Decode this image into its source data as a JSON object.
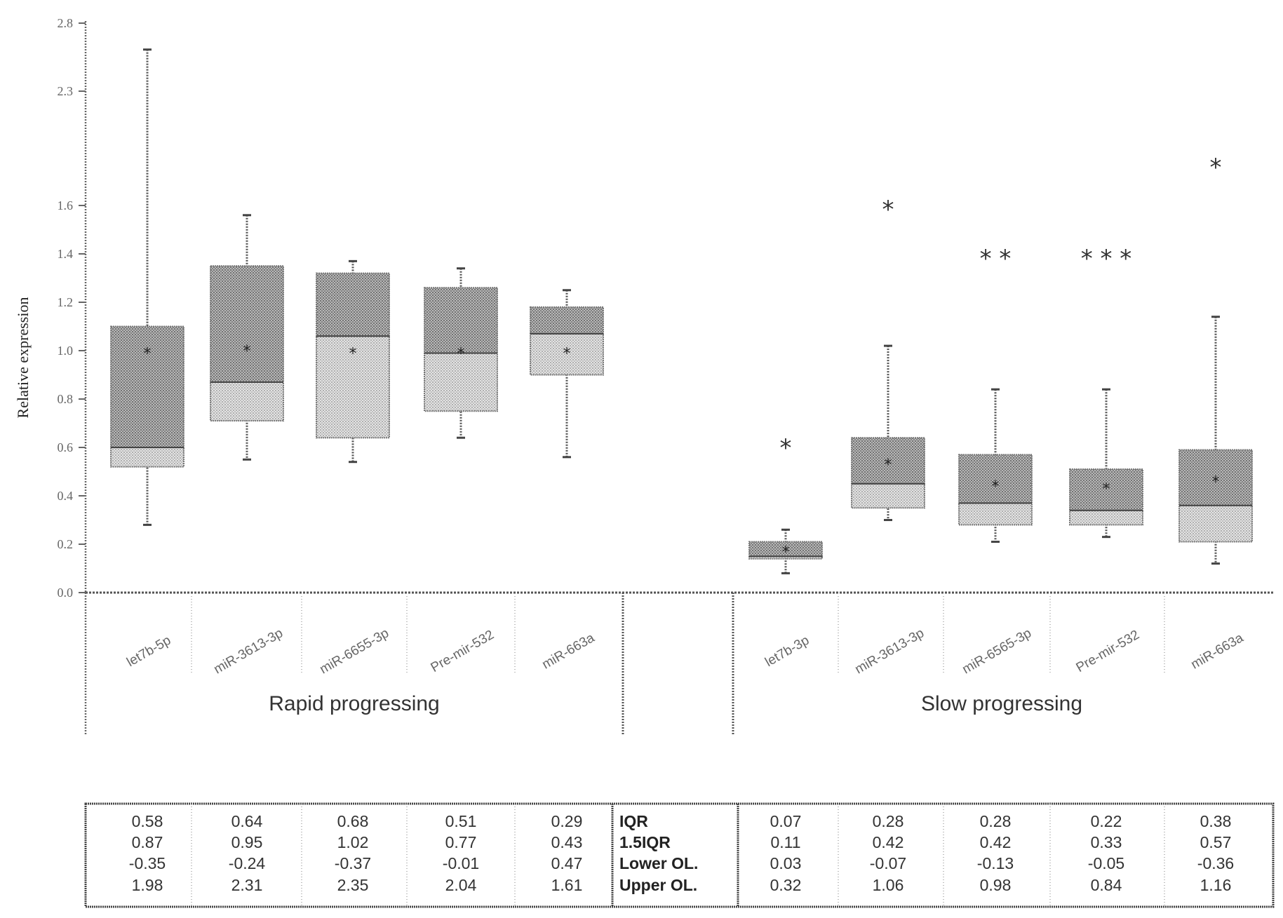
{
  "chart_data": {
    "type": "box",
    "ylabel": "Relative expression",
    "ytick_labels": [
      "0.0",
      "0.2",
      "0.4",
      "0.6",
      "0.8",
      "1.0",
      "1.2",
      "1.4",
      "1.6",
      "2.3",
      "2.8"
    ],
    "axis_break": {
      "lower": 1.6,
      "upper": 2.3
    },
    "colors": {
      "box_fill": "#cfcfcf",
      "box_dark": "#9e9e9e",
      "line": "#555555"
    },
    "groups": [
      {
        "name": "Rapid progressing",
        "boxes": [
          {
            "label": "let7b-5p",
            "whisker_low": 0.28,
            "q1": 0.52,
            "median": 0.6,
            "q3": 1.1,
            "whisker_high": 2.4,
            "mean": 0.99,
            "sig": ""
          },
          {
            "label": "miR-3613-3p",
            "whisker_low": 0.55,
            "q1": 0.71,
            "median": 0.87,
            "q3": 1.35,
            "whisker_high": 1.56,
            "mean": 1.0,
            "sig": ""
          },
          {
            "label": "miR-6655-3p",
            "whisker_low": 0.54,
            "q1": 0.64,
            "median": 1.06,
            "q3": 1.32,
            "whisker_high": 1.37,
            "mean": 0.99,
            "sig": ""
          },
          {
            "label": "Pre-mir-532",
            "whisker_low": 0.64,
            "q1": 0.75,
            "median": 0.99,
            "q3": 1.26,
            "whisker_high": 1.34,
            "mean": 0.99,
            "sig": ""
          },
          {
            "label": "miR-663a",
            "whisker_low": 0.56,
            "q1": 0.9,
            "median": 1.07,
            "q3": 1.18,
            "whisker_high": 1.25,
            "mean": 0.99,
            "sig": ""
          }
        ],
        "stats": {
          "IQR": [
            "0.58",
            "0.64",
            "0.68",
            "0.51",
            "0.29"
          ],
          "1.5IQR": [
            "0.87",
            "0.95",
            "1.02",
            "0.77",
            "0.43"
          ],
          "Lower OL": [
            "-0.35",
            "-0.24",
            "-0.37",
            "-0.01",
            "0.47"
          ],
          "Upper OL": [
            "1.98",
            "2.31",
            "2.35",
            "2.04",
            "1.61"
          ]
        }
      },
      {
        "name": "Slow progressing",
        "boxes": [
          {
            "label": "let7b-3p",
            "whisker_low": 0.08,
            "q1": 0.14,
            "median": 0.15,
            "q3": 0.21,
            "whisker_high": 0.26,
            "mean": 0.17,
            "sig": "*"
          },
          {
            "label": "miR-3613-3p",
            "whisker_low": 0.3,
            "q1": 0.35,
            "median": 0.45,
            "q3": 0.64,
            "whisker_high": 1.02,
            "mean": 0.53,
            "sig": "*"
          },
          {
            "label": "miR-6565-3p",
            "whisker_low": 0.21,
            "q1": 0.28,
            "median": 0.37,
            "q3": 0.57,
            "whisker_high": 0.84,
            "mean": 0.44,
            "sig": "**"
          },
          {
            "label": "Pre-mir-532",
            "whisker_low": 0.23,
            "q1": 0.28,
            "median": 0.34,
            "q3": 0.51,
            "whisker_high": 0.84,
            "mean": 0.43,
            "sig": "***"
          },
          {
            "label": "miR-663a",
            "whisker_low": 0.12,
            "q1": 0.21,
            "median": 0.36,
            "q3": 0.59,
            "whisker_high": 1.14,
            "mean": 0.46,
            "sig": "*"
          }
        ],
        "stats": {
          "IQR": [
            "0.07",
            "0.28",
            "0.28",
            "0.22",
            "0.38"
          ],
          "1.5IQR": [
            "0.11",
            "0.42",
            "0.42",
            "0.33",
            "0.57"
          ],
          "Lower OL": [
            "0.03",
            "-0.07",
            "-0.13",
            "-0.05",
            "-0.36"
          ],
          "Upper OL": [
            "0.32",
            "1.06",
            "0.98",
            "0.84",
            "1.16"
          ]
        }
      }
    ],
    "stat_row_labels": [
      "IQR",
      "1.5IQR",
      "Lower OL.",
      "Upper OL."
    ]
  }
}
